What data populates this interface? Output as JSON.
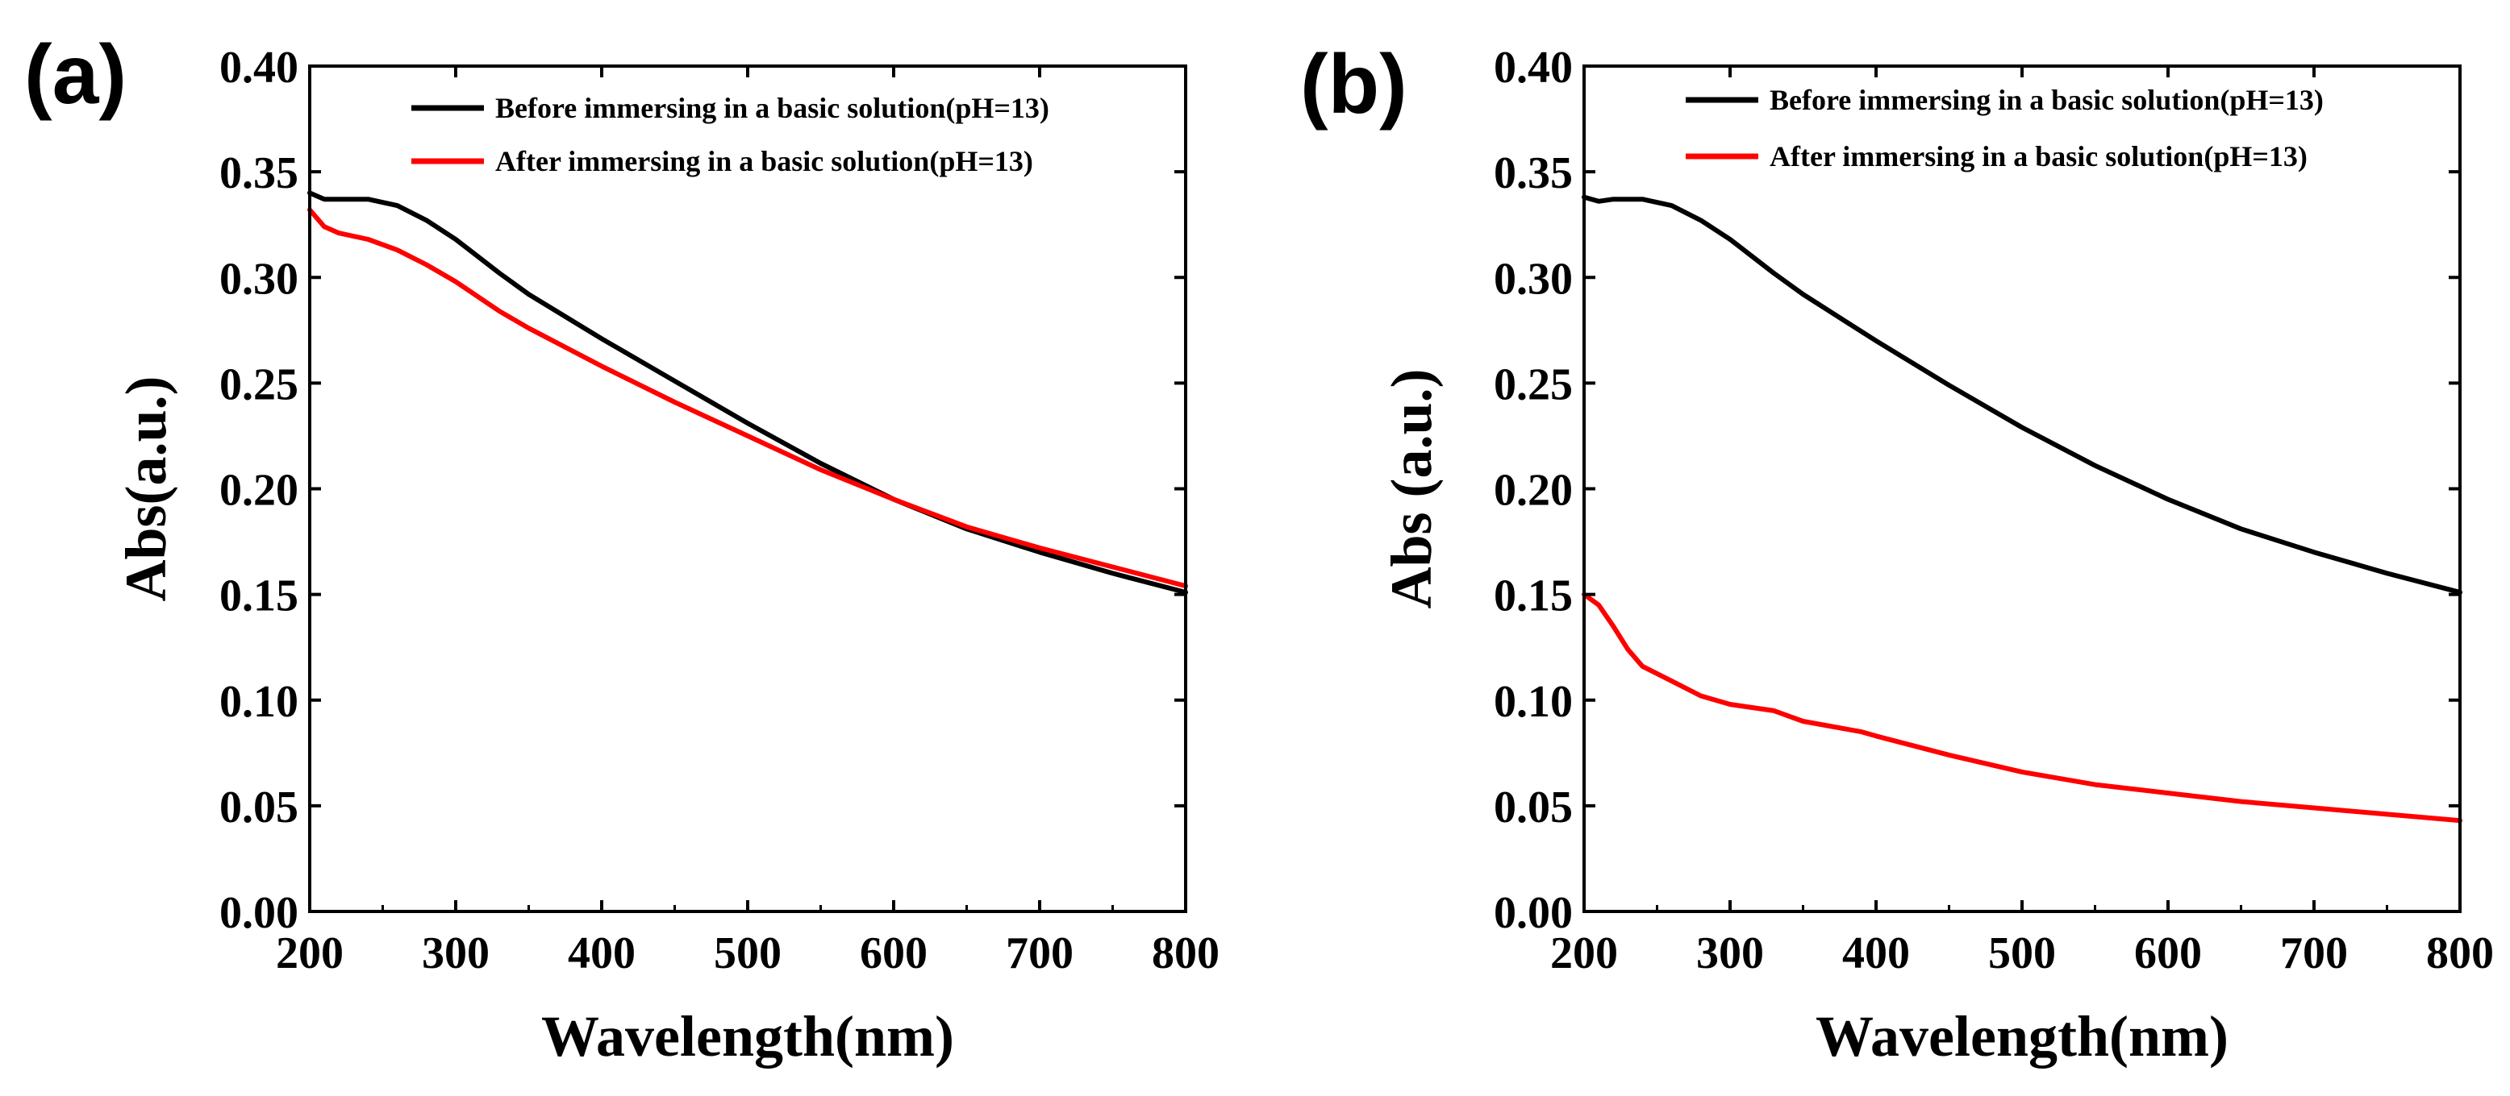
{
  "panels": [
    {
      "label": "(a)",
      "legend": [
        {
          "text": "Before immersing in a basic solution(pH=13)",
          "color": "#000000"
        },
        {
          "text": "After immersing  in a basic solution(pH=13)",
          "color": "#ff0000"
        }
      ]
    },
    {
      "label": "(b)",
      "legend": [
        {
          "text": "Before immersing in a basic solution(pH=13)",
          "color": "#000000"
        },
        {
          "text": "After immersing  in a basic solution(pH=13)",
          "color": "#ff0000"
        }
      ]
    }
  ],
  "chart_data": [
    {
      "type": "line",
      "title": "(a)",
      "xlabel": "Wavelength(nm)",
      "ylabel": "Abs(a.u.)",
      "xlim": [
        200,
        800
      ],
      "ylim": [
        0.0,
        0.4
      ],
      "xticks": [
        "200",
        "300",
        "400",
        "500",
        "600",
        "700",
        "800"
      ],
      "yticks": [
        "0.00",
        "0.05",
        "0.10",
        "0.15",
        "0.20",
        "0.25",
        "0.30",
        "0.35",
        "0.40"
      ],
      "legend_position": "top-right",
      "series": [
        {
          "name": "Before immersing in a basic solution(pH=13)",
          "color": "#000000",
          "x": [
            200,
            210,
            220,
            240,
            260,
            280,
            300,
            330,
            350,
            400,
            450,
            500,
            550,
            600,
            650,
            700,
            750,
            800
          ],
          "y": [
            0.34,
            0.337,
            0.337,
            0.337,
            0.334,
            0.327,
            0.318,
            0.302,
            0.292,
            0.271,
            0.251,
            0.231,
            0.212,
            0.195,
            0.181,
            0.17,
            0.16,
            0.151
          ]
        },
        {
          "name": "After immersing  in a basic solution(pH=13)",
          "color": "#ff0000",
          "x": [
            200,
            210,
            220,
            240,
            260,
            280,
            300,
            330,
            350,
            400,
            450,
            500,
            550,
            600,
            650,
            700,
            750,
            800
          ],
          "y": [
            0.332,
            0.324,
            0.321,
            0.318,
            0.313,
            0.306,
            0.298,
            0.284,
            0.276,
            0.258,
            0.241,
            0.225,
            0.209,
            0.195,
            0.182,
            0.172,
            0.163,
            0.154
          ]
        }
      ]
    },
    {
      "type": "line",
      "title": "(b)",
      "xlabel": "Wavelength(nm)",
      "ylabel": "Abs (a.u.)",
      "xlim": [
        200,
        800
      ],
      "ylim": [
        0.0,
        0.4
      ],
      "xticks": [
        "200",
        "300",
        "400",
        "500",
        "600",
        "700",
        "800"
      ],
      "yticks": [
        "0.00",
        "0.05",
        "0.10",
        "0.15",
        "0.20",
        "0.25",
        "0.30",
        "0.35",
        "0.40"
      ],
      "legend_position": "top-right",
      "series": [
        {
          "name": "Before immersing in a basic solution(pH=13)",
          "color": "#000000",
          "x": [
            200,
            210,
            220,
            240,
            260,
            280,
            300,
            330,
            350,
            400,
            450,
            500,
            550,
            600,
            650,
            700,
            750,
            800
          ],
          "y": [
            0.338,
            0.336,
            0.337,
            0.337,
            0.334,
            0.327,
            0.318,
            0.302,
            0.292,
            0.27,
            0.249,
            0.229,
            0.211,
            0.195,
            0.181,
            0.17,
            0.16,
            0.151
          ]
        },
        {
          "name": "After immersing  in a basic solution(pH=13)",
          "color": "#ff0000",
          "x": [
            200,
            210,
            220,
            230,
            240,
            260,
            280,
            300,
            330,
            350,
            390,
            400,
            450,
            500,
            550,
            600,
            650,
            700,
            750,
            800
          ],
          "y": [
            0.15,
            0.145,
            0.135,
            0.124,
            0.116,
            0.109,
            0.102,
            0.098,
            0.095,
            0.09,
            0.085,
            0.083,
            0.074,
            0.066,
            0.06,
            0.056,
            0.052,
            0.049,
            0.046,
            0.043
          ]
        }
      ]
    }
  ]
}
